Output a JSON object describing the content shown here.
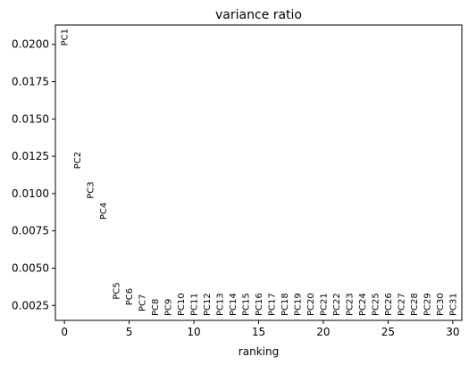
{
  "chart_data": {
    "type": "scatter",
    "title": "variance ratio",
    "xlabel": "ranking",
    "ylabel": "",
    "xlim": [
      -0.7,
      30.7
    ],
    "ylim": [
      0.0015,
      0.0213
    ],
    "xticks": [
      0,
      5,
      10,
      15,
      20,
      25,
      30
    ],
    "xtick_labels": [
      "0",
      "5",
      "10",
      "15",
      "20",
      "25",
      "30"
    ],
    "yticks": [
      0.0025,
      0.005,
      0.0075,
      0.01,
      0.0125,
      0.015,
      0.0175,
      0.02
    ],
    "ytick_labels": [
      "0.0025",
      "0.0050",
      "0.0075",
      "0.0100",
      "0.0125",
      "0.0150",
      "0.0175",
      "0.0200"
    ],
    "grid": false,
    "points": [
      {
        "x": 0,
        "y": 0.0199,
        "label": "PC1"
      },
      {
        "x": 1,
        "y": 0.01165,
        "label": "PC2"
      },
      {
        "x": 2,
        "y": 0.00965,
        "label": "PC3"
      },
      {
        "x": 3,
        "y": 0.00825,
        "label": "PC4"
      },
      {
        "x": 4,
        "y": 0.0029,
        "label": "PC5"
      },
      {
        "x": 5,
        "y": 0.0025,
        "label": "PC6"
      },
      {
        "x": 6,
        "y": 0.0021,
        "label": "PC7"
      },
      {
        "x": 7,
        "y": 0.0018,
        "label": "PC8"
      },
      {
        "x": 8,
        "y": 0.0018,
        "label": "PC9"
      },
      {
        "x": 9,
        "y": 0.0018,
        "label": "PC10"
      },
      {
        "x": 10,
        "y": 0.0018,
        "label": "PC11"
      },
      {
        "x": 11,
        "y": 0.0018,
        "label": "PC12"
      },
      {
        "x": 12,
        "y": 0.0018,
        "label": "PC13"
      },
      {
        "x": 13,
        "y": 0.0018,
        "label": "PC14"
      },
      {
        "x": 14,
        "y": 0.0018,
        "label": "PC15"
      },
      {
        "x": 15,
        "y": 0.0018,
        "label": "PC16"
      },
      {
        "x": 16,
        "y": 0.0018,
        "label": "PC17"
      },
      {
        "x": 17,
        "y": 0.0018,
        "label": "PC18"
      },
      {
        "x": 18,
        "y": 0.0018,
        "label": "PC19"
      },
      {
        "x": 19,
        "y": 0.0018,
        "label": "PC20"
      },
      {
        "x": 20,
        "y": 0.0018,
        "label": "PC21"
      },
      {
        "x": 21,
        "y": 0.0018,
        "label": "PC22"
      },
      {
        "x": 22,
        "y": 0.0018,
        "label": "PC23"
      },
      {
        "x": 23,
        "y": 0.0018,
        "label": "PC24"
      },
      {
        "x": 24,
        "y": 0.0018,
        "label": "PC25"
      },
      {
        "x": 25,
        "y": 0.0018,
        "label": "PC26"
      },
      {
        "x": 26,
        "y": 0.0018,
        "label": "PC27"
      },
      {
        "x": 27,
        "y": 0.0018,
        "label": "PC28"
      },
      {
        "x": 28,
        "y": 0.0018,
        "label": "PC29"
      },
      {
        "x": 29,
        "y": 0.0018,
        "label": "PC30"
      },
      {
        "x": 30,
        "y": 0.0018,
        "label": "PC31"
      }
    ]
  }
}
